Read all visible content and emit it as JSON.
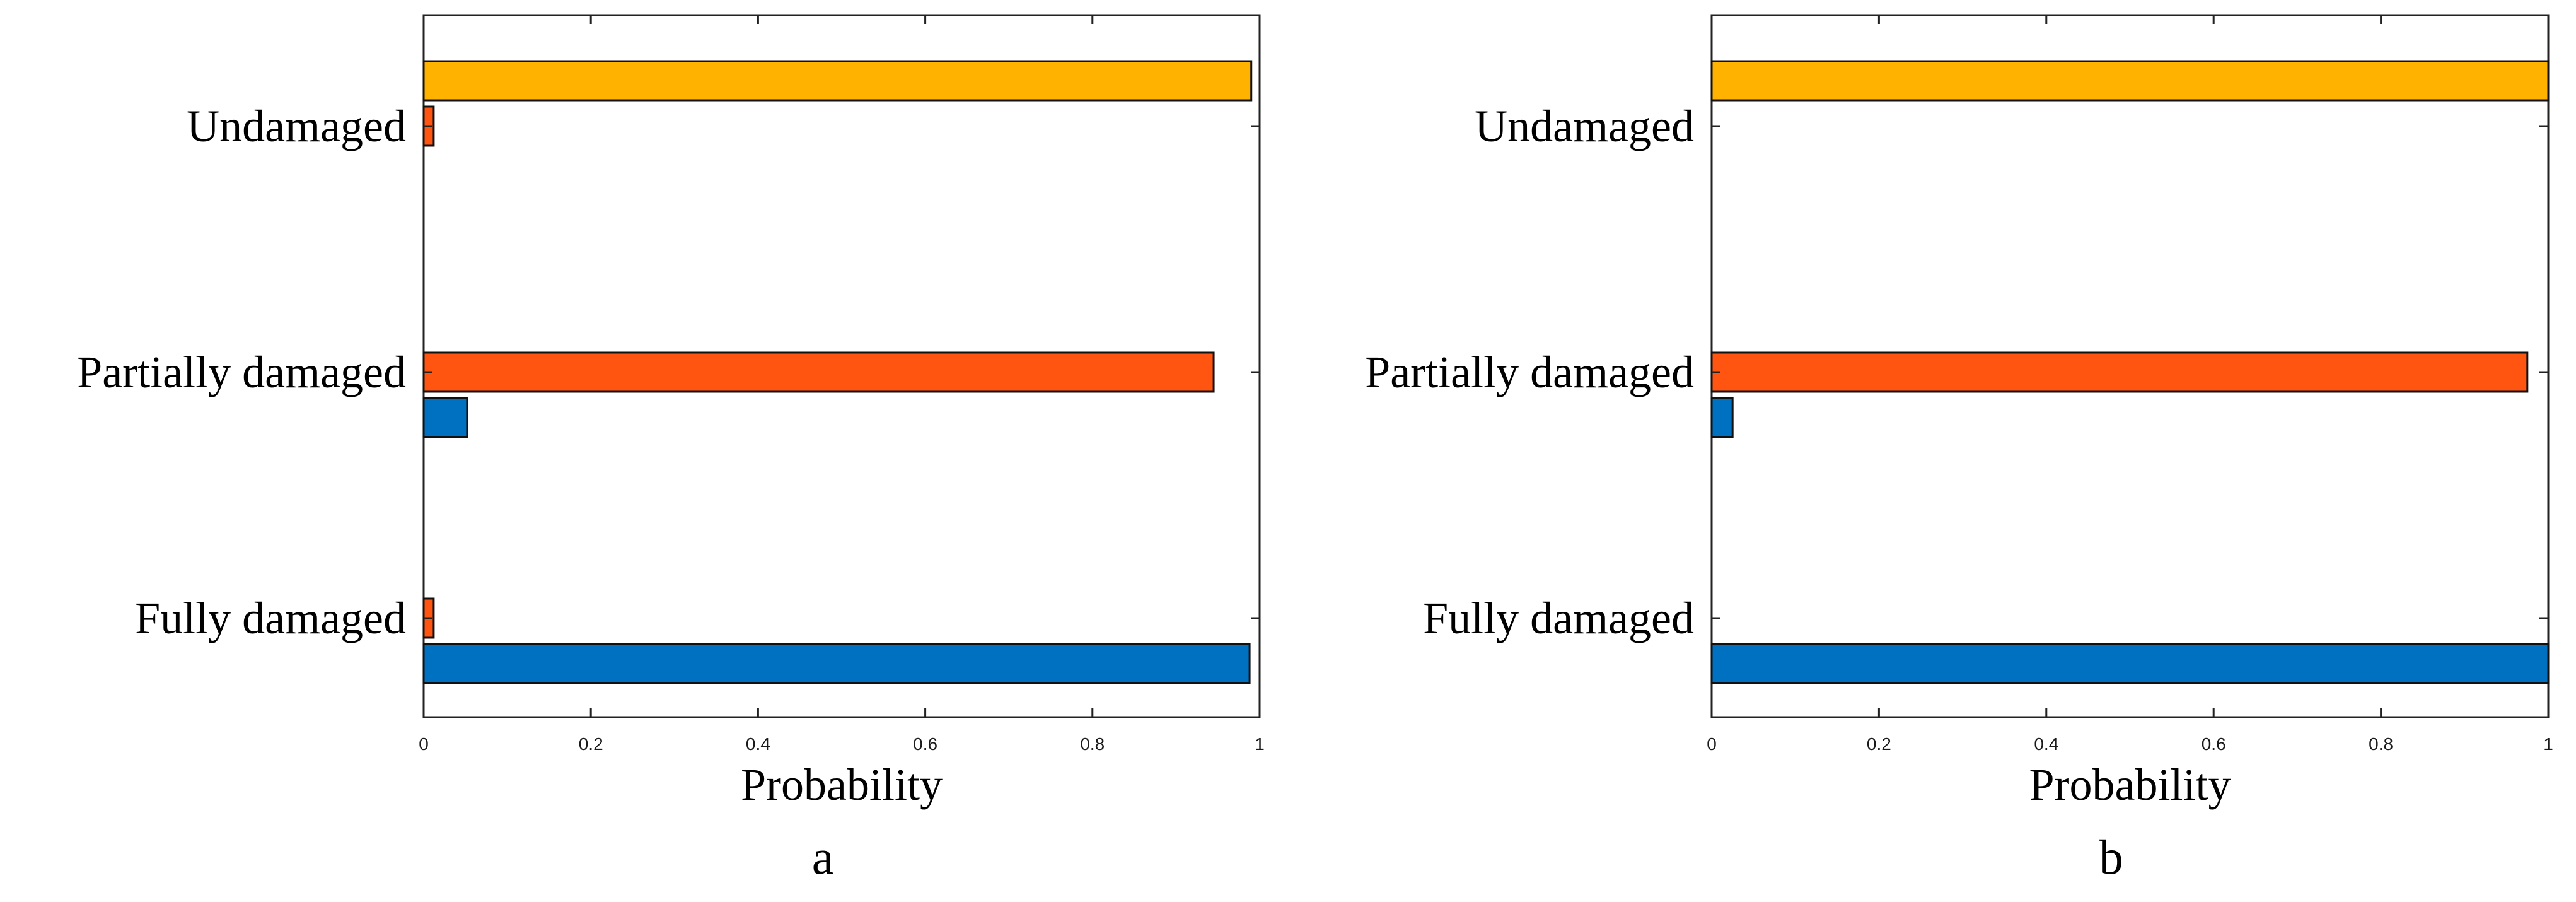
{
  "chart_data": [
    {
      "type": "bar",
      "orientation": "horizontal",
      "panel_label": "a",
      "categories": [
        "Undamaged",
        "Partially damaged",
        "Fully damaged"
      ],
      "xlabel": "Probability",
      "xlim": [
        0,
        1
      ],
      "xticks": [
        "0",
        "0.2",
        "0.4",
        "0.6",
        "0.8",
        "1"
      ],
      "grid": false,
      "legend": "none",
      "series": [
        {
          "color": "#FFB300",
          "values": [
            0.99,
            0,
            0
          ]
        },
        {
          "color": "#FF5511",
          "values": [
            0.012,
            0.945,
            0.012
          ]
        },
        {
          "color": "#0070C0",
          "values": [
            0,
            0.052,
            0.988
          ]
        }
      ]
    },
    {
      "type": "bar",
      "orientation": "horizontal",
      "panel_label": "b",
      "categories": [
        "Undamaged",
        "Partially damaged",
        "Fully damaged"
      ],
      "xlabel": "Probability",
      "xlim": [
        0,
        1
      ],
      "xticks": [
        "0",
        "0.2",
        "0.4",
        "0.6",
        "0.8",
        "1"
      ],
      "grid": false,
      "legend": "none",
      "series": [
        {
          "color": "#FFB300",
          "values": [
            1.0,
            0,
            0
          ]
        },
        {
          "color": "#FF5511",
          "values": [
            0,
            0.975,
            0
          ]
        },
        {
          "color": "#0070C0",
          "values": [
            0,
            0.025,
            1.0
          ]
        }
      ]
    }
  ]
}
